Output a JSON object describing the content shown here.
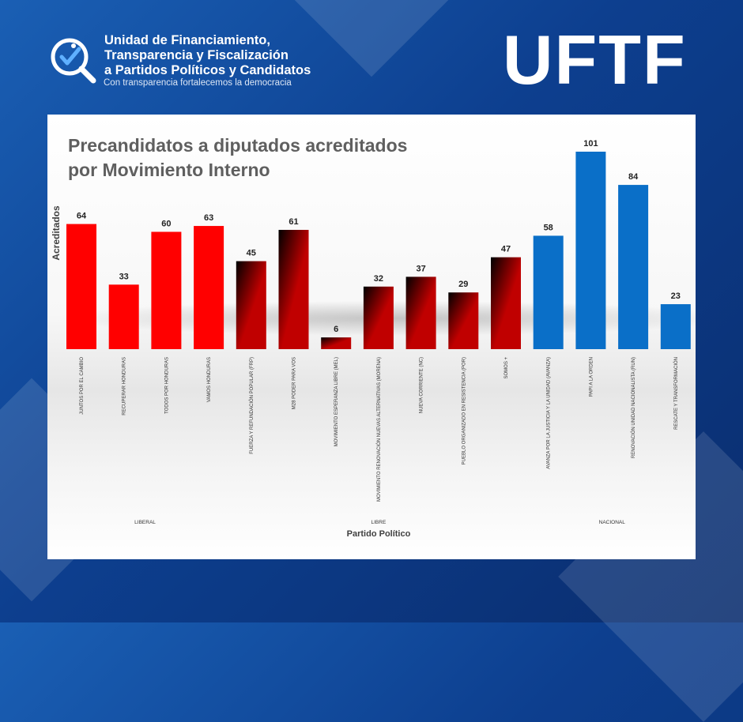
{
  "header": {
    "org_name_lines": [
      "Unidad de Financiamiento,",
      "Transparencia y Fiscalización",
      "a Partidos Políticos y Candidatos"
    ],
    "slogan": "Con transparencia fortalecemos la democracia",
    "brand": "UFTF",
    "logo_icon": "magnifier-check-star-icon"
  },
  "colors": {
    "background": "#0d3f8f",
    "liberal": "#ff0000",
    "libre_dark": "#000000",
    "libre_red": "#c00000",
    "nacional": "#0a6fc8",
    "title": "#5f5f5f"
  },
  "chart_data": {
    "type": "bar",
    "title_lines": [
      "Precandidatos a diputados acreditados",
      "por Movimiento Interno"
    ],
    "ylabel": "Acreditados",
    "xlabel": "Partido Político",
    "ylim": [
      0,
      101
    ],
    "grid": false,
    "legend": "none",
    "categories": [
      "JUNTOS POR EL CAMBIO",
      "RECUPERAR HONDURAS",
      "TODOS POR HONDURAS",
      "VAMOS HONDURAS",
      "FUERZA Y REFUNDACIÓN POPULAR (FRP)",
      "M28 PODER PARA VOS",
      "MOVIMIENTO ESPERANZA LIBRE (MEL)",
      "MOVIMIENTO RENOVACIÓN NUEVAS ALTERNATIVAS (MORENA)",
      "NUEVA CORRIENTE (NC)",
      "PUEBLO ORGANIZADO EN RESISTENCIA (POR)",
      "SOMOS +",
      "AVANZA POR LA JUSTICIA Y LA UNIDAD (AVANZA)",
      "PAPI A LA ORDEN",
      "RENOVACIÓN UNIDAD NACIONALISTA (RUN)",
      "RESCATE Y TRANSFORMACIÓN"
    ],
    "values": [
      64,
      33,
      60,
      63,
      45,
      61,
      6,
      32,
      37,
      29,
      47,
      58,
      101,
      84,
      23
    ],
    "groups": [
      {
        "name": "LIBERAL",
        "start": 0,
        "end": 3,
        "style": "liberal"
      },
      {
        "name": "LIBRE",
        "start": 4,
        "end": 10,
        "style": "libre"
      },
      {
        "name": "NACIONAL",
        "start": 11,
        "end": 14,
        "style": "nacional"
      }
    ]
  }
}
